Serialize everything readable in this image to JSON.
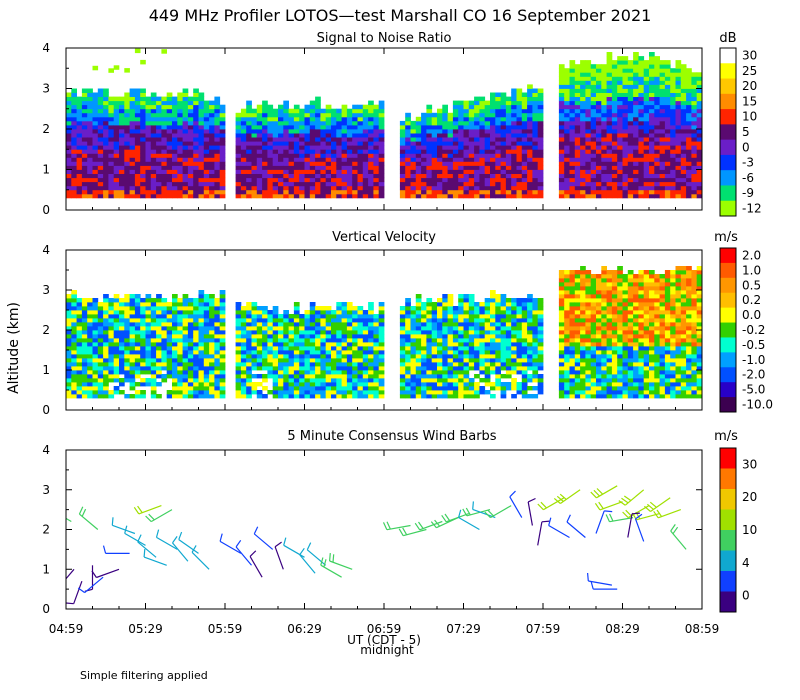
{
  "figure": {
    "title": "449 MHz Profiler LOTOS—test Marshall CO 16 September 2021",
    "ylabel": "Altitude (km)",
    "xlabel": "UT  (CDT - 5)",
    "midnight_label": "midnight",
    "footnote": "Simple filtering applied"
  },
  "chart_data": [
    {
      "type": "heatmap",
      "title": "Signal to Noise Ratio",
      "xlabel": "UT (CDT - 5)",
      "ylabel": "Altitude (km)",
      "xlim": [
        0,
        240
      ],
      "ylim": [
        0,
        4
      ],
      "x_tick_labels": [
        "04:59",
        "05:29",
        "05:59",
        "06:29",
        "06:59",
        "07:29",
        "07:59",
        "08:29",
        "08:59"
      ],
      "y_tick_labels": [
        "0",
        "1",
        "2",
        "3",
        "4"
      ],
      "colorbar_unit": "dB",
      "colorbar_labels": [
        "30",
        "25",
        "20",
        "15",
        "10",
        "5",
        "0",
        "-3",
        "-6",
        "-9",
        "-12"
      ],
      "colors": [
        "#ffffff",
        "#ffff00",
        "#ffc800",
        "#ff8c00",
        "#ff2400",
        "#5a0a70",
        "#6a1ec8",
        "#0032ff",
        "#0096ff",
        "#00e070",
        "#9cff00"
      ],
      "data_gaps_minutes": [
        [
          60,
          63
        ],
        [
          120,
          125
        ],
        [
          180,
          185
        ]
      ],
      "echo_top_km": [
        {
          "t": 0,
          "top": 2.8
        },
        {
          "t": 30,
          "top": 2.9
        },
        {
          "t": 60,
          "top": 2.7
        },
        {
          "t": 63,
          "top": 2.5
        },
        {
          "t": 90,
          "top": 2.6
        },
        {
          "t": 120,
          "top": 2.5
        },
        {
          "t": 125,
          "top": 2.2
        },
        {
          "t": 150,
          "top": 2.6
        },
        {
          "t": 180,
          "top": 3.0
        },
        {
          "t": 185,
          "top": 3.6
        },
        {
          "t": 215,
          "top": 3.8
        },
        {
          "t": 240,
          "top": 3.4
        }
      ]
    },
    {
      "type": "heatmap",
      "title": "Vertical Velocity",
      "xlabel": "UT (CDT - 5)",
      "ylabel": "Altitude (km)",
      "xlim": [
        0,
        240
      ],
      "ylim": [
        0,
        4
      ],
      "x_tick_labels": [
        "04:59",
        "05:29",
        "05:59",
        "06:29",
        "06:59",
        "07:29",
        "07:59",
        "08:29",
        "08:59"
      ],
      "y_tick_labels": [
        "0",
        "1",
        "2",
        "3",
        "4"
      ],
      "colorbar_unit": "m/s",
      "colorbar_labels": [
        "2.0",
        "1.0",
        "0.5",
        "0.2",
        "0.0",
        "-0.2",
        "-0.5",
        "-1.0",
        "-2.0",
        "-5.0",
        "-10.0"
      ],
      "colors": [
        "#ff0000",
        "#ff5a00",
        "#ff9600",
        "#ffbe00",
        "#ffff00",
        "#32d000",
        "#00ffd0",
        "#00a0ff",
        "#0050ff",
        "#2800c8",
        "#3c0050"
      ],
      "data_gaps_minutes": [
        [
          60,
          63
        ],
        [
          120,
          125
        ],
        [
          180,
          185
        ]
      ],
      "echo_top_km": [
        {
          "t": 0,
          "top": 2.8
        },
        {
          "t": 60,
          "top": 2.8
        },
        {
          "t": 63,
          "top": 2.5
        },
        {
          "t": 120,
          "top": 2.5
        },
        {
          "t": 125,
          "top": 2.7
        },
        {
          "t": 180,
          "top": 2.8
        },
        {
          "t": 185,
          "top": 3.4
        },
        {
          "t": 240,
          "top": 3.5
        }
      ]
    },
    {
      "type": "scatter",
      "title": "5 Minute Consensus Wind Barbs",
      "xlabel": "UT (CDT - 5)",
      "ylabel": "Altitude (km)",
      "xlim": [
        0,
        240
      ],
      "ylim": [
        0,
        4
      ],
      "x_tick_labels": [
        "04:59",
        "05:29",
        "05:59",
        "06:29",
        "06:59",
        "07:29",
        "07:59",
        "08:29",
        "08:59"
      ],
      "y_tick_labels": [
        "0",
        "1",
        "2",
        "3",
        "4"
      ],
      "colorbar_unit": "m/s",
      "colorbar_labels": [
        "30",
        "20",
        "10",
        "4",
        "0"
      ],
      "colors": [
        "#ff0000",
        "#ff7800",
        "#f0c800",
        "#a0e000",
        "#40d060",
        "#10a8d0",
        "#1040ff",
        "#3a0080"
      ],
      "barbs": [
        {
          "t": 2,
          "z": 2.2,
          "speed": 8,
          "dir": 300
        },
        {
          "t": 12,
          "z": 2.0,
          "speed": 9,
          "dir": 310
        },
        {
          "t": 3,
          "z": 1.0,
          "speed": 2,
          "dir": 220
        },
        {
          "t": 6,
          "z": 0.7,
          "speed": 1,
          "dir": 200
        },
        {
          "t": 10,
          "z": 1.1,
          "speed": 2,
          "dir": 180
        },
        {
          "t": 14,
          "z": 0.8,
          "speed": 3,
          "dir": 230
        },
        {
          "t": 20,
          "z": 1.0,
          "speed": 2,
          "dir": 250
        },
        {
          "t": 24,
          "z": 1.4,
          "speed": 3,
          "dir": 270
        },
        {
          "t": 26,
          "z": 1.9,
          "speed": 6,
          "dir": 290
        },
        {
          "t": 30,
          "z": 1.6,
          "speed": 6,
          "dir": 300
        },
        {
          "t": 34,
          "z": 1.3,
          "speed": 7,
          "dir": 310
        },
        {
          "t": 38,
          "z": 1.1,
          "speed": 6,
          "dir": 290
        },
        {
          "t": 42,
          "z": 1.5,
          "speed": 7,
          "dir": 300
        },
        {
          "t": 46,
          "z": 1.2,
          "speed": 6,
          "dir": 320
        },
        {
          "t": 50,
          "z": 1.4,
          "speed": 7,
          "dir": 305
        },
        {
          "t": 54,
          "z": 1.0,
          "speed": 6,
          "dir": 315
        },
        {
          "t": 36,
          "z": 2.6,
          "speed": 12,
          "dir": 250
        },
        {
          "t": 40,
          "z": 2.5,
          "speed": 11,
          "dir": 240
        },
        {
          "t": 66,
          "z": 1.4,
          "speed": 3,
          "dir": 300
        },
        {
          "t": 70,
          "z": 1.1,
          "speed": 3,
          "dir": 320
        },
        {
          "t": 74,
          "z": 0.8,
          "speed": 2,
          "dir": 330
        },
        {
          "t": 78,
          "z": 1.5,
          "speed": 3,
          "dir": 310
        },
        {
          "t": 82,
          "z": 1.0,
          "speed": 2,
          "dir": 340
        },
        {
          "t": 90,
          "z": 1.3,
          "speed": 6,
          "dir": 300
        },
        {
          "t": 94,
          "z": 0.9,
          "speed": 6,
          "dir": 320
        },
        {
          "t": 98,
          "z": 1.1,
          "speed": 7,
          "dir": 310
        },
        {
          "t": 104,
          "z": 0.8,
          "speed": 8,
          "dir": 300
        },
        {
          "t": 108,
          "z": 1.0,
          "speed": 8,
          "dir": 290
        },
        {
          "t": 130,
          "z": 2.1,
          "speed": 10,
          "dir": 260
        },
        {
          "t": 136,
          "z": 2.0,
          "speed": 10,
          "dir": 255
        },
        {
          "t": 142,
          "z": 2.2,
          "speed": 11,
          "dir": 250
        },
        {
          "t": 148,
          "z": 2.3,
          "speed": 11,
          "dir": 245
        },
        {
          "t": 152,
          "z": 2.4,
          "speed": 10,
          "dir": 250
        },
        {
          "t": 156,
          "z": 2.0,
          "speed": 6,
          "dir": 300
        },
        {
          "t": 160,
          "z": 2.5,
          "speed": 10,
          "dir": 255
        },
        {
          "t": 162,
          "z": 2.3,
          "speed": 7,
          "dir": 290
        },
        {
          "t": 168,
          "z": 2.6,
          "speed": 9,
          "dir": 240
        },
        {
          "t": 172,
          "z": 2.3,
          "speed": 3,
          "dir": 330
        },
        {
          "t": 176,
          "z": 2.1,
          "speed": 2,
          "dir": 350
        },
        {
          "t": 178,
          "z": 1.6,
          "speed": 2,
          "dir": 10
        },
        {
          "t": 188,
          "z": 2.8,
          "speed": 12,
          "dir": 240
        },
        {
          "t": 194,
          "z": 3.0,
          "speed": 13,
          "dir": 235
        },
        {
          "t": 190,
          "z": 1.8,
          "speed": 3,
          "dir": 300
        },
        {
          "t": 196,
          "z": 1.8,
          "speed": 3,
          "dir": 310
        },
        {
          "t": 200,
          "z": 1.9,
          "speed": 3,
          "dir": 20
        },
        {
          "t": 208,
          "z": 3.1,
          "speed": 14,
          "dir": 240
        },
        {
          "t": 210,
          "z": 2.7,
          "speed": 12,
          "dir": 250
        },
        {
          "t": 214,
          "z": 2.3,
          "speed": 11,
          "dir": 260
        },
        {
          "t": 218,
          "z": 3.0,
          "speed": 13,
          "dir": 230
        },
        {
          "t": 220,
          "z": 2.6,
          "speed": 12,
          "dir": 240
        },
        {
          "t": 224,
          "z": 2.4,
          "speed": 12,
          "dir": 255
        },
        {
          "t": 228,
          "z": 2.8,
          "speed": 13,
          "dir": 235
        },
        {
          "t": 232,
          "z": 2.5,
          "speed": 12,
          "dir": 250
        },
        {
          "t": 234,
          "z": 1.5,
          "speed": 9,
          "dir": 320
        },
        {
          "t": 212,
          "z": 1.8,
          "speed": 2,
          "dir": 10
        },
        {
          "t": 218,
          "z": 1.7,
          "speed": 3,
          "dir": 340
        },
        {
          "t": 206,
          "z": 0.6,
          "speed": 3,
          "dir": 280
        },
        {
          "t": 208,
          "z": 0.5,
          "speed": 3,
          "dir": 270
        }
      ]
    }
  ]
}
